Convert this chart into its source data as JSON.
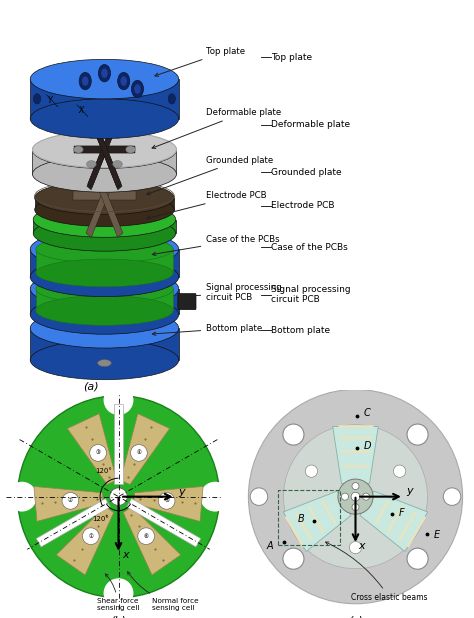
{
  "fig_width": 4.74,
  "fig_height": 6.18,
  "dpi": 100,
  "bg_color": "#ffffff",
  "blue_dark": "#1847a0",
  "blue_mid": "#2255c0",
  "blue_light": "#3a7de8",
  "blue_rim": "#1035a0",
  "green_pcb": "#2db52d",
  "green_dark": "#1a8a1a",
  "green_ring": "#32b432",
  "white_plate": "#e8e8e8",
  "white_bright": "#f5f5f5",
  "gray_plate": "#c0bfbf",
  "dark_gray": "#4a4040",
  "brown_gray": "#5a4a3a",
  "tan_color": "#cdb87a",
  "light_cyan": "#c8e8e0",
  "light_yellow": "#e8e4c0",
  "gray_bg": "#c0bfbf",
  "annotations_a": [
    [
      "Top plate",
      8.2,
      8.6,
      5.5,
      7.9
    ],
    [
      "Deformable plate",
      8.2,
      7.0,
      5.5,
      6.25
    ],
    [
      "Grounded plate",
      8.2,
      5.8,
      5.2,
      5.25
    ],
    [
      "Electrode PCB",
      8.2,
      4.95,
      5.2,
      4.55
    ],
    [
      "Case of the PCBs",
      8.2,
      3.9,
      5.5,
      3.55
    ],
    [
      "Signal processing\ncircuit PCB",
      8.2,
      2.7,
      6.8,
      2.4
    ],
    [
      "Bottom plate",
      8.2,
      1.8,
      5.5,
      1.6
    ]
  ]
}
